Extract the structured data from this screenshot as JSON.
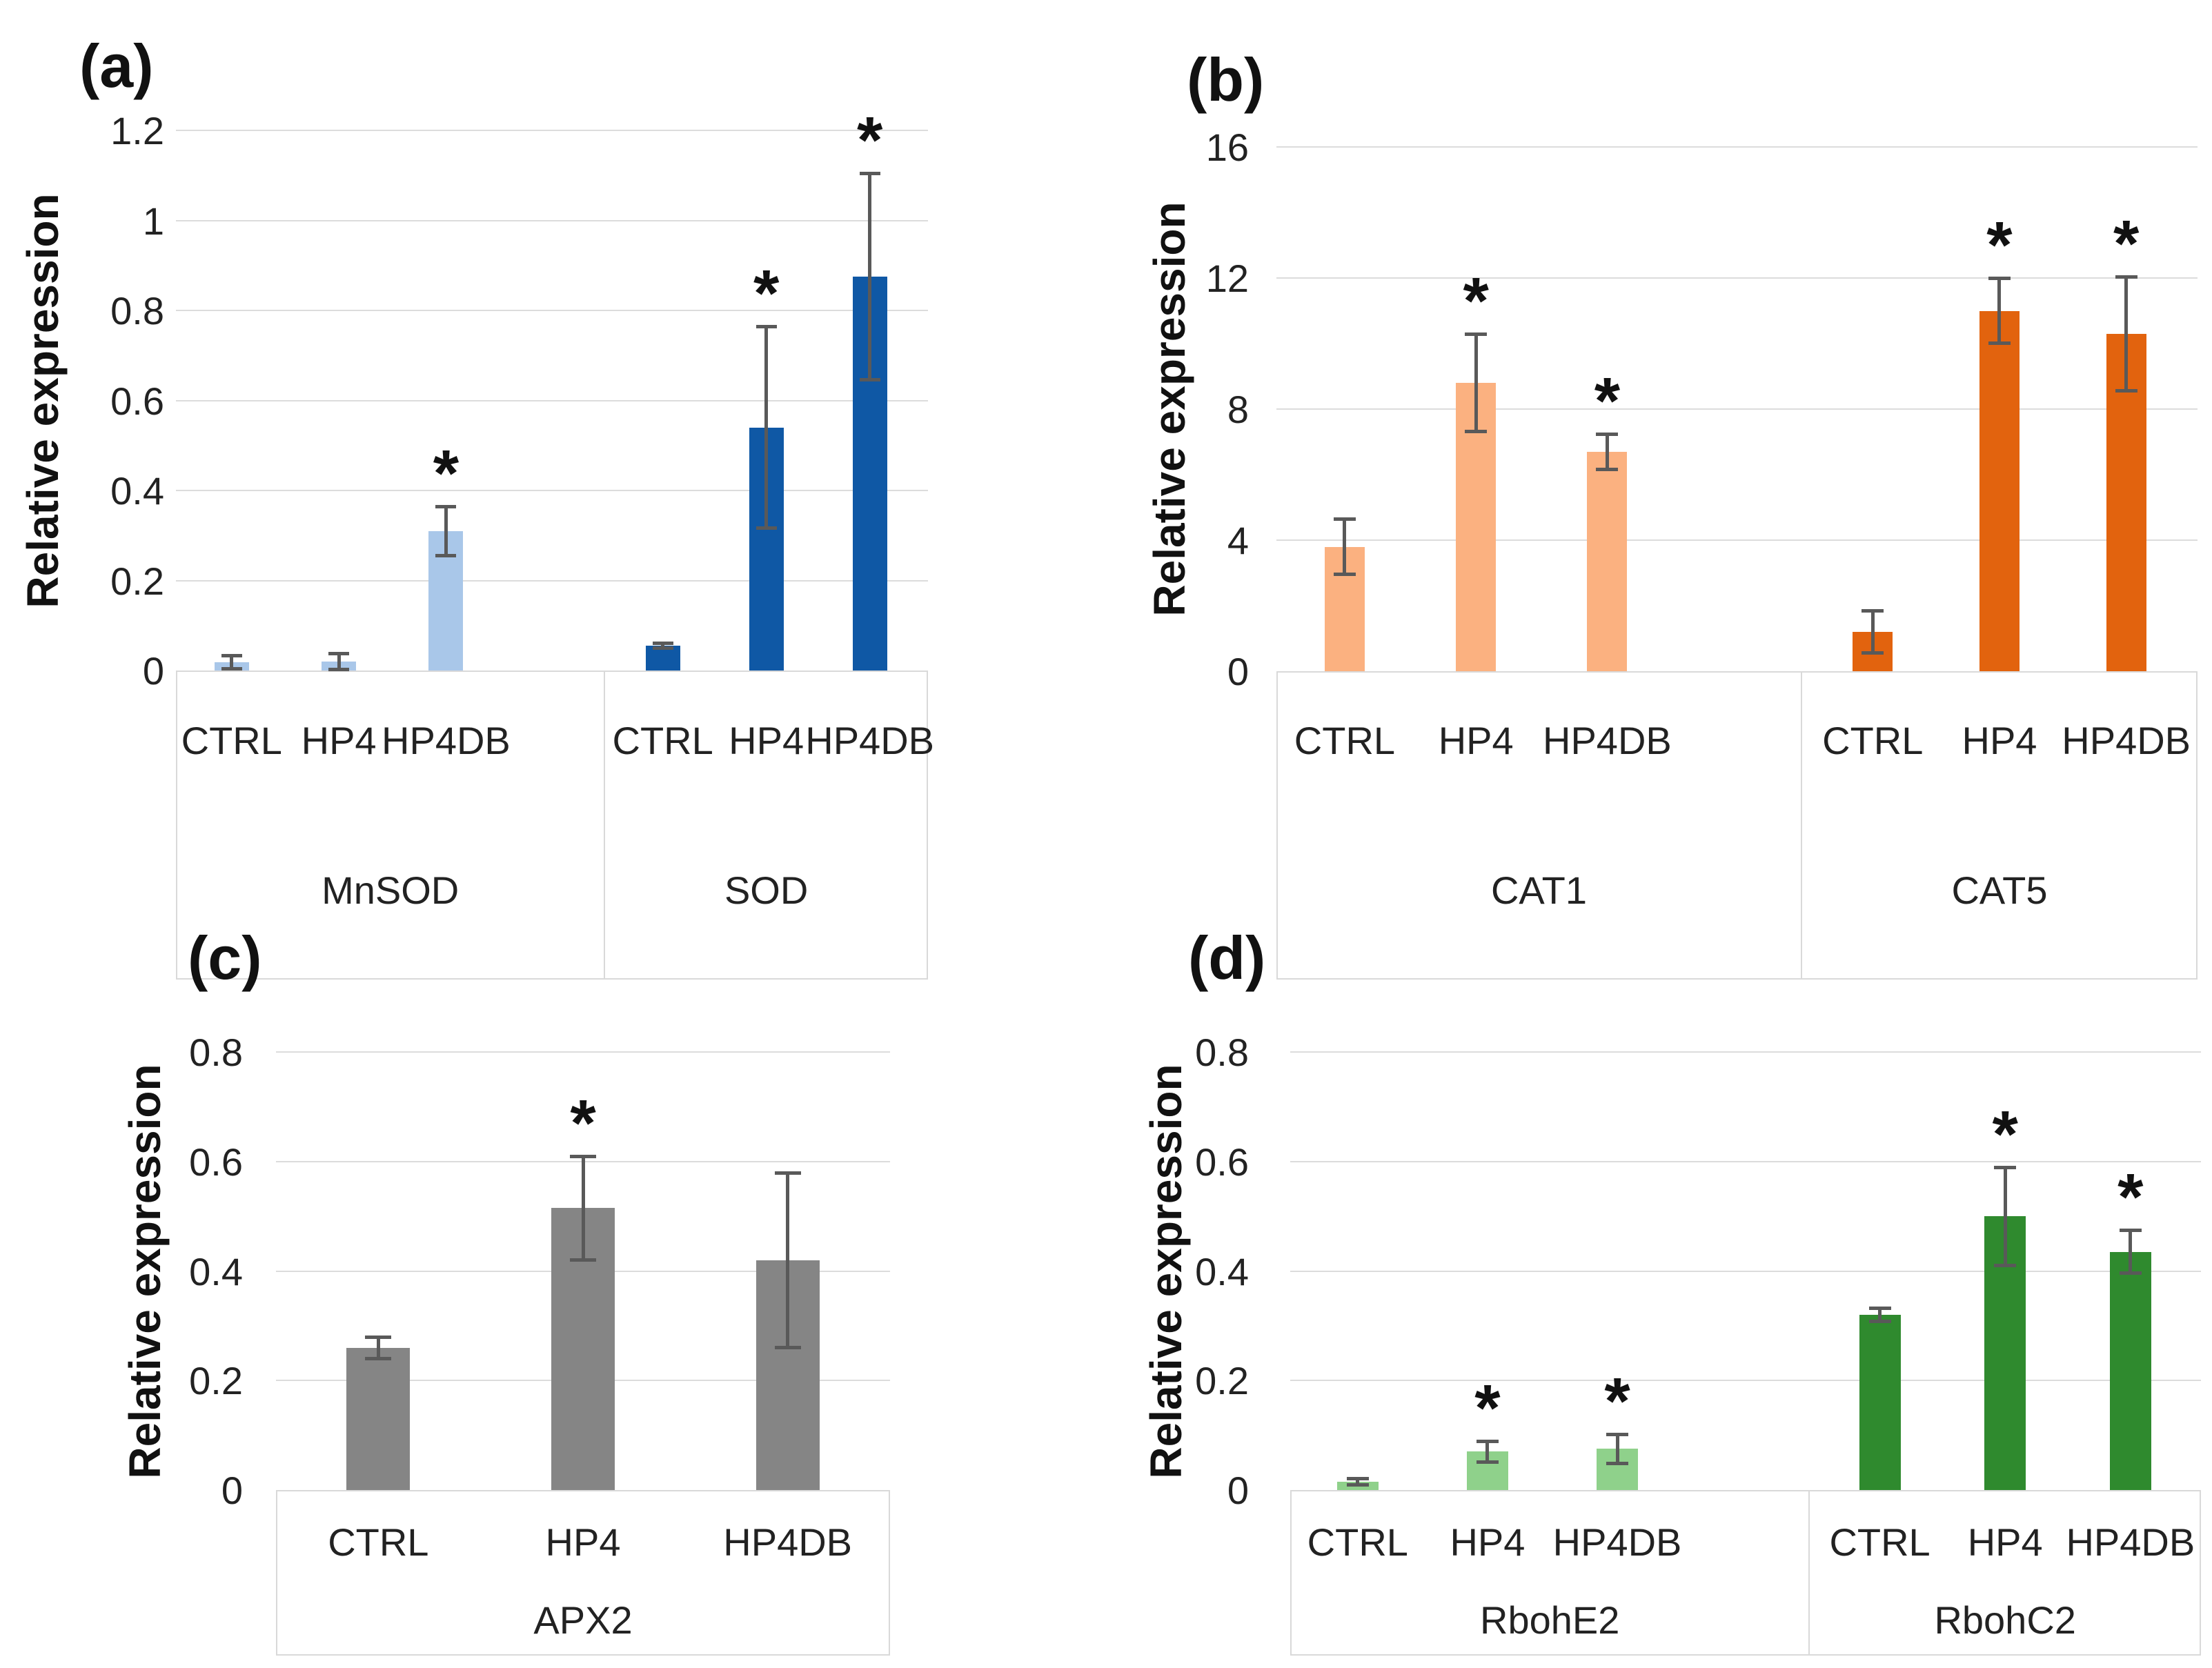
{
  "figure": {
    "sig_marker": "*",
    "background": "#FFFFFF",
    "grid_color": "#DCDCDC",
    "box_border_color": "#D9D9D9",
    "error_bar_color": "#595959",
    "text_color": "#222222"
  },
  "chart_data": [
    {
      "type": "bar",
      "panel_label": "(a)",
      "ylabel": "Relative expression",
      "y_max": 1.2,
      "ylim": [
        0,
        1.2
      ],
      "grid": true,
      "y_tick_labels": [
        "1.2",
        "1",
        "0.8",
        "0.6",
        "0.4",
        "0.2",
        "0"
      ],
      "groups": [
        {
          "name": "MnSOD",
          "bar_color": "#A9C7E9",
          "bars": [
            {
              "condition": "CTRL",
              "value": 0.018,
              "error": 0.015,
              "significant": false
            },
            {
              "condition": "HP4",
              "value": 0.02,
              "error": 0.018,
              "significant": false
            },
            {
              "condition": "HP4DB",
              "value": 0.31,
              "error": 0.055,
              "significant": true
            }
          ]
        },
        {
          "name": "SOD",
          "bar_color": "#0F58A5",
          "bars": [
            {
              "condition": "CTRL",
              "value": 0.055,
              "error": 0.006,
              "significant": false
            },
            {
              "condition": "HP4",
              "value": 0.54,
              "error": 0.225,
              "significant": true
            },
            {
              "condition": "HP4DB",
              "value": 0.875,
              "error": 0.23,
              "significant": true
            }
          ]
        }
      ]
    },
    {
      "type": "bar",
      "panel_label": "(b)",
      "ylabel": "Relative expression",
      "y_max": 16,
      "ylim": [
        0,
        16
      ],
      "grid": true,
      "y_tick_labels": [
        "16",
        "12",
        "8",
        "4",
        "0"
      ],
      "groups": [
        {
          "name": "CAT1",
          "bar_color": "#FBB180",
          "bars": [
            {
              "condition": "CTRL",
              "value": 3.8,
              "error": 0.85,
              "significant": false
            },
            {
              "condition": "HP4",
              "value": 8.8,
              "error": 1.5,
              "significant": true
            },
            {
              "condition": "HP4DB",
              "value": 6.7,
              "error": 0.55,
              "significant": true
            }
          ]
        },
        {
          "name": "CAT5",
          "bar_color": "#E2630E",
          "bars": [
            {
              "condition": "CTRL",
              "value": 1.2,
              "error": 0.65,
              "significant": false
            },
            {
              "condition": "HP4",
              "value": 11.0,
              "error": 1.0,
              "significant": true
            },
            {
              "condition": "HP4DB",
              "value": 10.3,
              "error": 1.75,
              "significant": true
            }
          ]
        }
      ]
    },
    {
      "type": "bar",
      "panel_label": "(c)",
      "ylabel": "Relative expression",
      "y_max": 0.8,
      "ylim": [
        0,
        0.8
      ],
      "grid": true,
      "y_tick_labels": [
        "0.8",
        "0.6",
        "0.4",
        "0.2",
        "0"
      ],
      "groups": [
        {
          "name": "APX2",
          "bar_color": "#858585",
          "bars": [
            {
              "condition": "CTRL",
              "value": 0.26,
              "error": 0.02,
              "significant": false
            },
            {
              "condition": "HP4",
              "value": 0.515,
              "error": 0.095,
              "significant": true
            },
            {
              "condition": "HP4DB",
              "value": 0.42,
              "error": 0.16,
              "significant": false
            }
          ]
        }
      ]
    },
    {
      "type": "bar",
      "panel_label": "(d)",
      "ylabel": "Relative expression",
      "y_max": 0.8,
      "ylim": [
        0,
        0.8
      ],
      "grid": true,
      "y_tick_labels": [
        "0.8",
        "0.6",
        "0.4",
        "0.2",
        "0"
      ],
      "groups": [
        {
          "name": "RbohE2",
          "bar_color": "#8FD18B",
          "bars": [
            {
              "condition": "CTRL",
              "value": 0.015,
              "error": 0.006,
              "significant": false
            },
            {
              "condition": "HP4",
              "value": 0.07,
              "error": 0.02,
              "significant": true
            },
            {
              "condition": "HP4DB",
              "value": 0.075,
              "error": 0.027,
              "significant": true
            }
          ]
        },
        {
          "name": "RbohC2",
          "bar_color": "#2F8A2E",
          "bars": [
            {
              "condition": "CTRL",
              "value": 0.32,
              "error": 0.012,
              "significant": false
            },
            {
              "condition": "HP4",
              "value": 0.5,
              "error": 0.09,
              "significant": true
            },
            {
              "condition": "HP4DB",
              "value": 0.435,
              "error": 0.04,
              "significant": true
            }
          ]
        }
      ]
    }
  ]
}
